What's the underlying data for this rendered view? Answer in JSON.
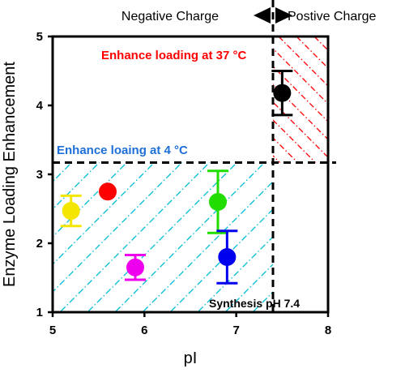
{
  "chart_data": {
    "type": "scatter",
    "xlabel": "pI",
    "ylabel": "Enzyme Loading Enhancement",
    "xlim": [
      5,
      8
    ],
    "ylim": [
      1,
      5
    ],
    "xticks": [
      "5",
      "6",
      "7",
      "8"
    ],
    "yticks": [
      "1",
      "2",
      "3",
      "4",
      "5"
    ],
    "grid": false,
    "points": [
      {
        "x": 5.2,
        "y": 2.47,
        "err": 0.22,
        "color": "#f5e600"
      },
      {
        "x": 5.6,
        "y": 2.75,
        "err": 0,
        "color": "#ff0000"
      },
      {
        "x": 5.9,
        "y": 1.65,
        "err": 0.18,
        "color": "#ee00ee"
      },
      {
        "x": 6.8,
        "y": 2.6,
        "err": 0.45,
        "color": "#22dd00"
      },
      {
        "x": 6.9,
        "y": 1.8,
        "err": 0.38,
        "color": "#0000ee"
      },
      {
        "x": 7.5,
        "y": 4.18,
        "err": 0.32,
        "color": "#000000"
      }
    ],
    "thresholds": {
      "x": 7.4,
      "y": 3.17
    },
    "annotations": {
      "top_right": "Enhance loading at 37 °C",
      "bottom_left": "Enhance loaing at 4 °C",
      "synthesis": "Synthesis pH 7.4",
      "negative": "Negative Charge",
      "positive": "Postive Charge"
    },
    "colors": {
      "red_region": "#ff0000",
      "blue_region": "#00bcd4",
      "red_text": "#ff0000",
      "blue_text": "#1e6fd9"
    }
  }
}
